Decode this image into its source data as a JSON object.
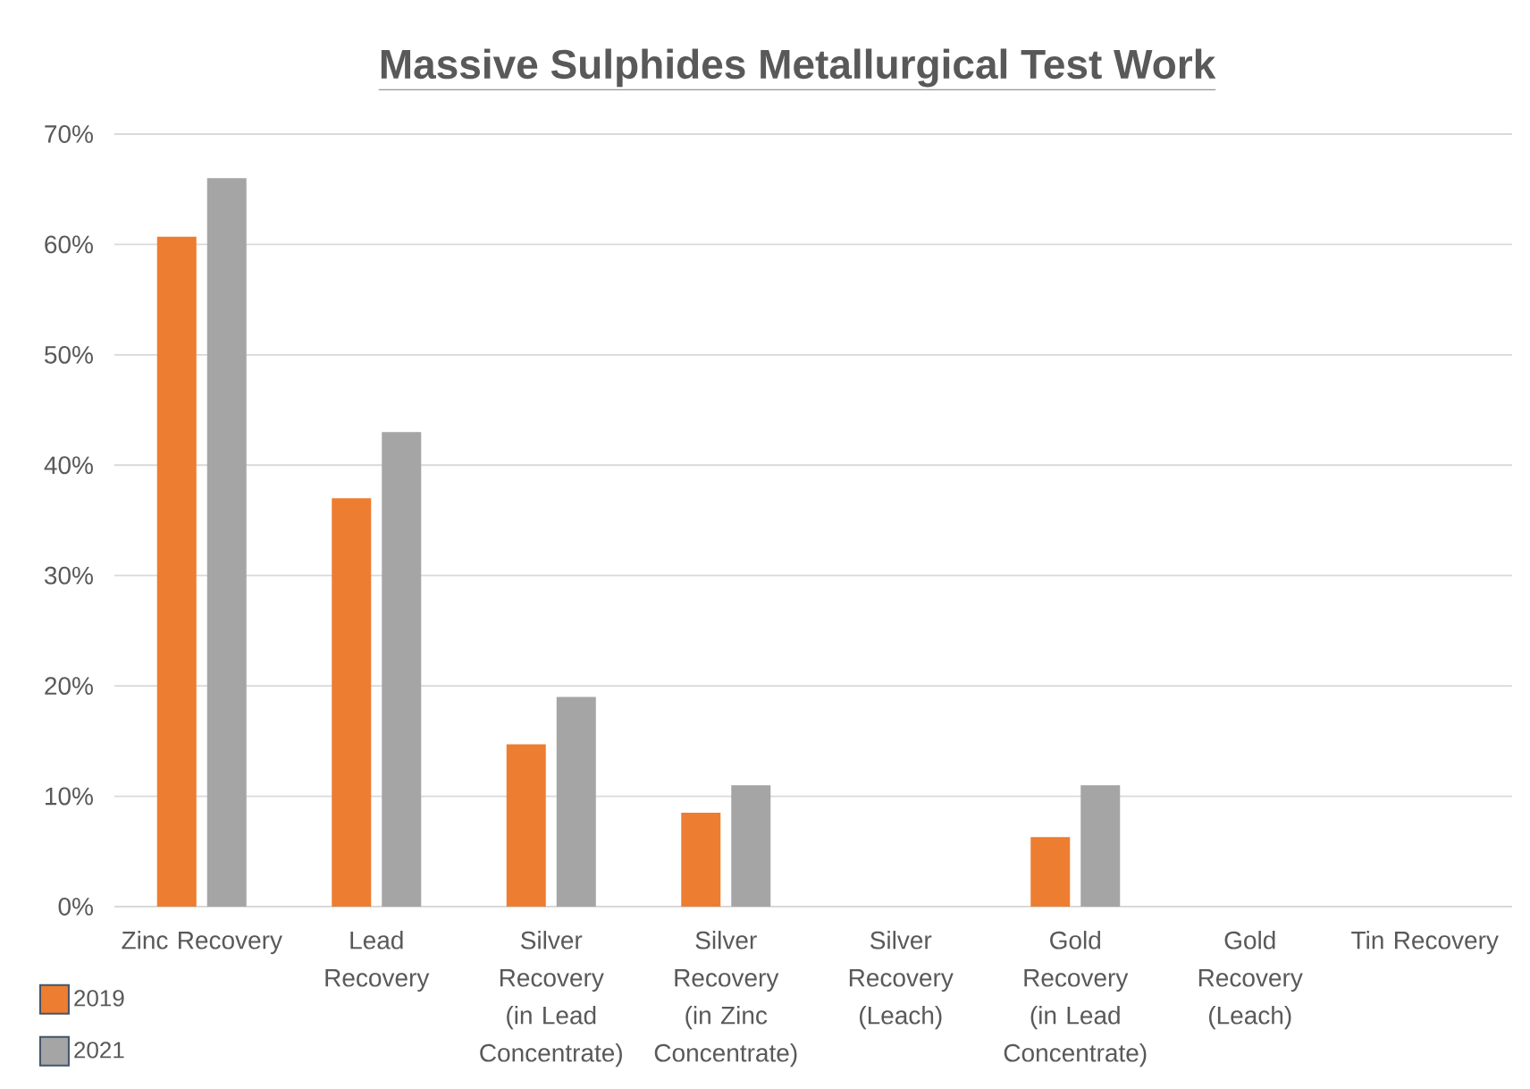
{
  "chart_data": {
    "type": "bar",
    "title": "Massive Sulphides Metallurgical Test Work",
    "categories": [
      "Zinc Recovery",
      "Lead Recovery",
      "Silver Recovery (in Lead Concentrate)",
      "Silver Recovery (in Zinc Concentrate)",
      "Silver Recovery (Leach)",
      "Gold Recovery (in Lead Concentrate)",
      "Gold Recovery (Leach)",
      "Tin Recovery"
    ],
    "series": [
      {
        "name": "2019",
        "color": "#ed7d31",
        "values": [
          60.7,
          37,
          14.7,
          8.5,
          null,
          6.3,
          null,
          null
        ]
      },
      {
        "name": "2021",
        "color": "#a5a5a5",
        "values": [
          66,
          43,
          19,
          11,
          null,
          11,
          null,
          null
        ]
      }
    ],
    "ylim": [
      0,
      70
    ],
    "yticks": [
      {
        "value": 0,
        "label": "0%"
      },
      {
        "value": 10,
        "label": "10%"
      },
      {
        "value": 20,
        "label": "20%"
      },
      {
        "value": 30,
        "label": "30%"
      },
      {
        "value": 40,
        "label": "40%"
      },
      {
        "value": 50,
        "label": "50%"
      },
      {
        "value": 60,
        "label": "60%"
      },
      {
        "value": 70,
        "label": "70%"
      }
    ],
    "grid": "y",
    "legend": "bottom left"
  }
}
